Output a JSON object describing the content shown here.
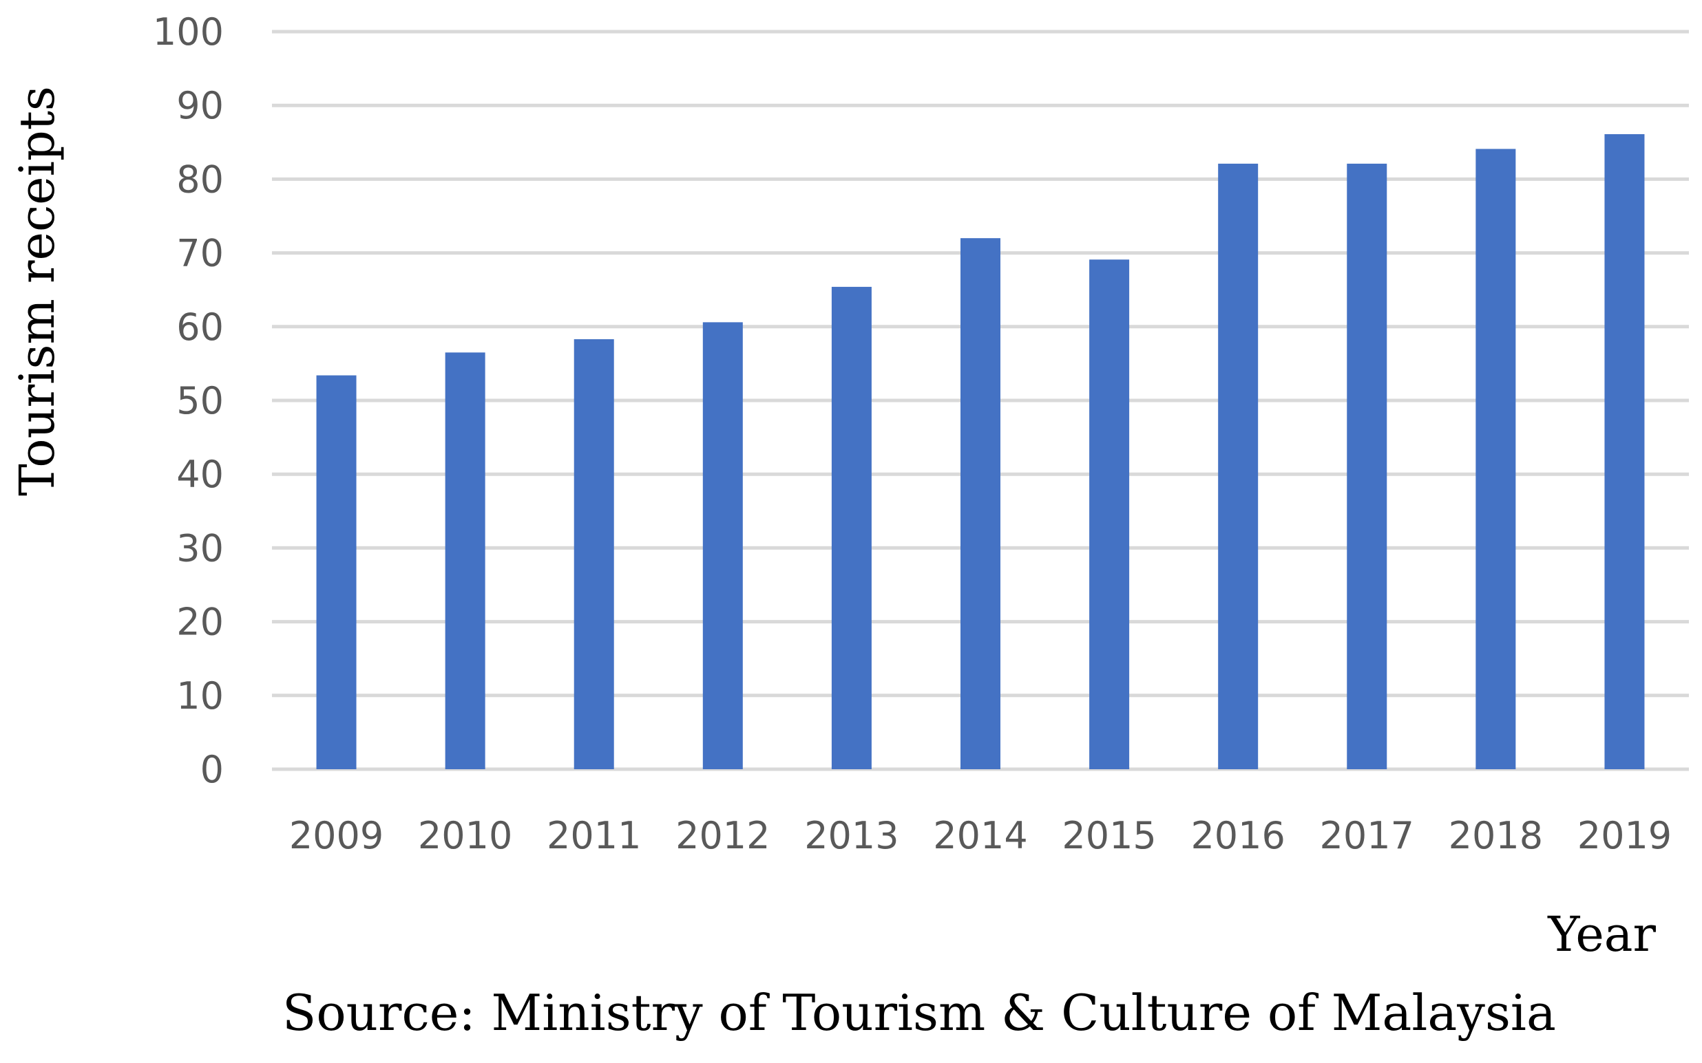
{
  "chart_data": {
    "type": "bar",
    "categories": [
      "2009",
      "2010",
      "2011",
      "2012",
      "2013",
      "2014",
      "2015",
      "2016",
      "2017",
      "2018",
      "2019"
    ],
    "values": [
      53.4,
      56.5,
      58.3,
      60.6,
      65.4,
      72.0,
      69.1,
      82.1,
      82.1,
      84.1,
      86.1
    ],
    "title": "",
    "xlabel": "Year",
    "ylabel": "Tourism receipts",
    "ylim": [
      0,
      100
    ],
    "ytick_step": 10,
    "grid": true,
    "legend": "none",
    "bar_color": "#4472C4",
    "grid_color": "#D9D9D9"
  },
  "source": "Source: Ministry of Tourism & Culture of Malaysia"
}
